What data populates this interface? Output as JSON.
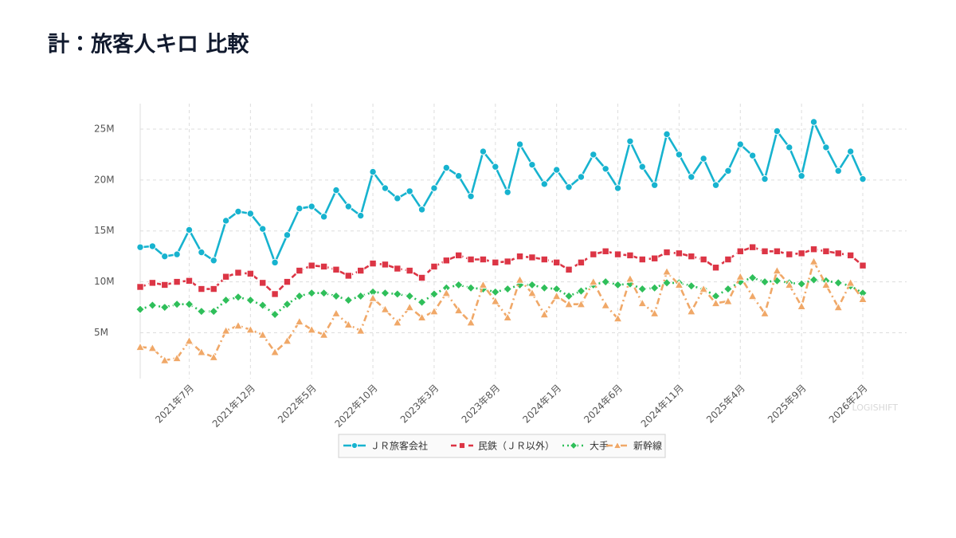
{
  "chart_data": {
    "type": "line",
    "title": "計：旅客人キロ 比較",
    "watermark": "LOGISHIFT",
    "categories": [
      null,
      null,
      null,
      null,
      "2021年7月",
      null,
      null,
      null,
      null,
      "2021年12月",
      null,
      null,
      null,
      null,
      "2022年5月",
      null,
      null,
      null,
      null,
      "2022年10月",
      null,
      null,
      null,
      null,
      "2023年3月",
      null,
      null,
      null,
      null,
      "2023年8月",
      null,
      null,
      null,
      null,
      "2024年1月",
      null,
      null,
      null,
      null,
      "2024年6月",
      null,
      null,
      null,
      null,
      "2024年11月",
      null,
      null,
      null,
      null,
      "2025年4月",
      null,
      null,
      null,
      null,
      "2025年9月",
      null,
      null,
      null,
      null,
      "2026年2月"
    ],
    "ylim": [
      0.5,
      27.5
    ],
    "yticks": [
      {
        "value": 5,
        "label": "5M"
      },
      {
        "value": 10,
        "label": "10M"
      },
      {
        "value": 15,
        "label": "15M"
      },
      {
        "value": 20,
        "label": "20M"
      },
      {
        "value": 25,
        "label": "25M"
      }
    ],
    "grid": true,
    "legend": "bottom",
    "series": [
      {
        "name": "ＪＲ旅客会社",
        "color": "#17b3cf",
        "marker": "circle",
        "dash": "solid",
        "values": [
          13.4,
          13.5,
          12.5,
          12.7,
          15.1,
          12.9,
          12.1,
          16.0,
          16.9,
          16.7,
          15.2,
          11.9,
          14.6,
          17.2,
          17.4,
          16.4,
          19.0,
          17.4,
          16.5,
          20.8,
          19.2,
          18.2,
          18.9,
          17.1,
          19.2,
          21.2,
          20.4,
          18.4,
          22.8,
          21.3,
          18.8,
          23.5,
          21.5,
          19.6,
          21.0,
          19.3,
          20.3,
          22.5,
          21.1,
          19.2,
          23.8,
          21.3,
          19.5,
          24.5,
          22.5,
          20.3,
          22.1,
          19.5,
          20.9,
          23.5,
          22.4,
          20.1,
          24.8,
          23.2,
          20.4,
          25.7,
          23.2,
          20.9,
          22.8,
          20.1
        ]
      },
      {
        "name": "民鉄（ＪＲ以外）",
        "color": "#dc3545",
        "marker": "square",
        "dash": "dashed",
        "values": [
          9.5,
          9.9,
          9.7,
          10.0,
          10.1,
          9.3,
          9.3,
          10.5,
          10.9,
          10.8,
          9.9,
          8.8,
          10.0,
          11.1,
          11.6,
          11.5,
          11.2,
          10.6,
          11.1,
          11.8,
          11.7,
          11.3,
          11.1,
          10.4,
          11.5,
          12.1,
          12.6,
          12.2,
          12.2,
          11.9,
          12.0,
          12.5,
          12.4,
          12.2,
          11.9,
          11.2,
          11.9,
          12.7,
          13.0,
          12.7,
          12.6,
          12.2,
          12.3,
          12.9,
          12.8,
          12.5,
          12.2,
          11.4,
          12.2,
          13.0,
          13.4,
          13.0,
          13.0,
          12.7,
          12.8,
          13.2,
          13.0,
          12.8,
          12.6,
          11.6
        ]
      },
      {
        "name": "大手",
        "color": "#2fbf5a",
        "marker": "diamond",
        "dash": "dotted",
        "values": [
          7.3,
          7.7,
          7.5,
          7.8,
          7.8,
          7.1,
          7.1,
          8.2,
          8.5,
          8.2,
          7.7,
          6.8,
          7.8,
          8.6,
          8.9,
          8.9,
          8.6,
          8.2,
          8.6,
          9.0,
          8.9,
          8.8,
          8.6,
          8.0,
          8.8,
          9.4,
          9.7,
          9.4,
          9.3,
          9.0,
          9.3,
          9.7,
          9.7,
          9.4,
          9.3,
          8.6,
          9.1,
          9.7,
          10.0,
          9.7,
          9.8,
          9.3,
          9.4,
          9.9,
          9.9,
          9.6,
          9.3,
          8.6,
          9.3,
          10.0,
          10.4,
          10.0,
          10.1,
          9.9,
          9.8,
          10.2,
          10.1,
          9.9,
          9.6,
          8.9
        ]
      },
      {
        "name": "新幹線",
        "color": "#f0a868",
        "marker": "triangle",
        "dash": "dashdot",
        "values": [
          3.6,
          3.5,
          2.3,
          2.5,
          4.2,
          3.1,
          2.6,
          5.2,
          5.7,
          5.3,
          4.8,
          3.1,
          4.2,
          6.1,
          5.3,
          4.8,
          6.9,
          5.8,
          5.2,
          8.4,
          7.3,
          6.0,
          7.5,
          6.5,
          7.1,
          8.9,
          7.2,
          6.0,
          9.7,
          8.1,
          6.5,
          10.2,
          8.9,
          6.8,
          8.6,
          7.8,
          7.8,
          10.0,
          7.7,
          6.4,
          10.3,
          7.9,
          6.9,
          11.0,
          9.7,
          7.1,
          9.3,
          7.9,
          8.1,
          10.5,
          8.6,
          6.9,
          11.1,
          9.7,
          7.6,
          12.0,
          9.7,
          7.5,
          9.9,
          8.3
        ]
      }
    ]
  }
}
